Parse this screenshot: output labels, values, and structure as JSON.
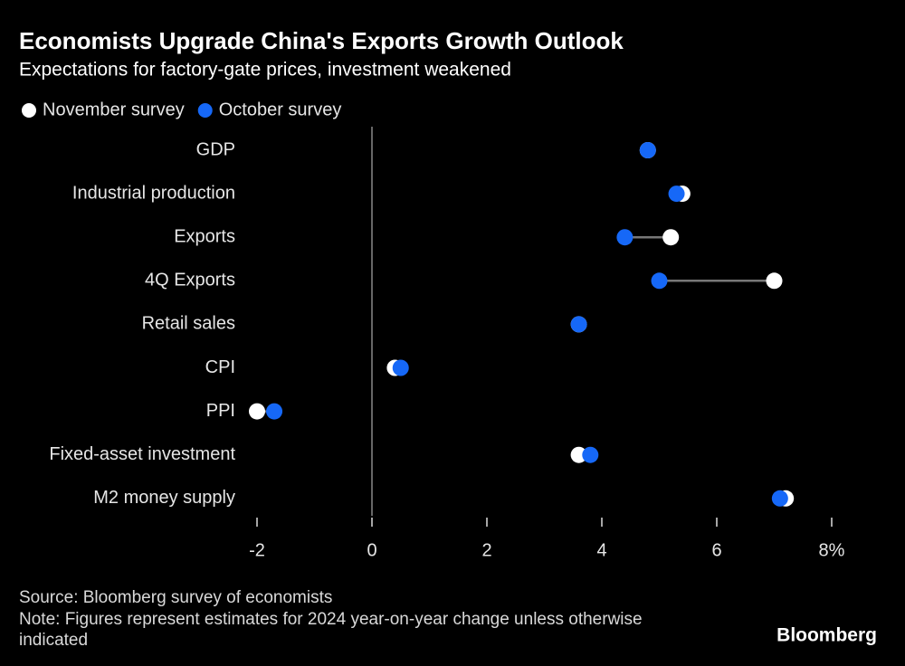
{
  "chart_data": {
    "type": "dot",
    "title": "Economists Upgrade China's Exports Growth Outlook",
    "subtitle": "Expectations for factory-gate prices, investment weakened",
    "categories": [
      "GDP",
      "Industrial production",
      "Exports",
      "4Q Exports",
      "Retail sales",
      "CPI",
      "PPI",
      "Fixed-asset investment",
      "M2 money supply"
    ],
    "series": [
      {
        "name": "November survey",
        "color": "#ffffff",
        "values": [
          4.8,
          5.4,
          5.2,
          7.0,
          3.6,
          0.4,
          -2.0,
          3.6,
          7.2
        ]
      },
      {
        "name": "October survey",
        "color": "#1668f7",
        "values": [
          4.8,
          5.3,
          4.4,
          5.0,
          3.6,
          0.5,
          -1.7,
          3.8,
          7.1
        ]
      }
    ],
    "xlim": [
      -2.2,
      8.2
    ],
    "xticks": [
      -2,
      0,
      2,
      4,
      6,
      {
        "value": 8,
        "label": "8%"
      }
    ],
    "source": "Source: Bloomberg survey of economists",
    "note": "Note: Figures represent estimates for 2024 year-on-year change unless otherwise indicated",
    "brand": "Bloomberg"
  }
}
